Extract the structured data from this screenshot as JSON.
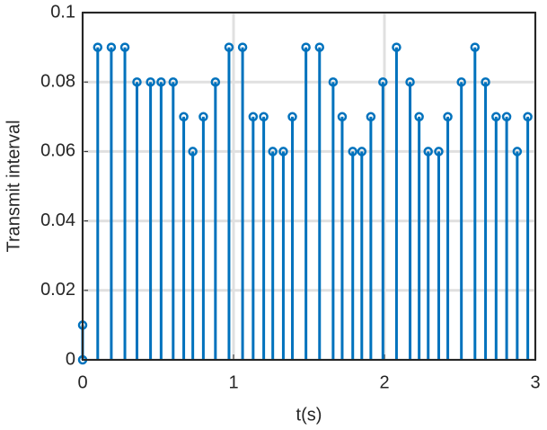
{
  "chart_data": {
    "type": "stem",
    "xlabel": "t(s)",
    "ylabel": "Transmit interval",
    "x": [
      0,
      0,
      0.1,
      0.19,
      0.28,
      0.36,
      0.45,
      0.52,
      0.6,
      0.67,
      0.73,
      0.8,
      0.88,
      0.97,
      1.06,
      1.13,
      1.2,
      1.26,
      1.33,
      1.39,
      1.48,
      1.57,
      1.66,
      1.72,
      1.79,
      1.85,
      1.91,
      1.99,
      2.08,
      2.17,
      2.23,
      2.29,
      2.36,
      2.42,
      2.51,
      2.6,
      2.67,
      2.74,
      2.81,
      2.88,
      2.95
    ],
    "values": [
      0,
      0.01,
      0.09,
      0.09,
      0.09,
      0.08,
      0.08,
      0.08,
      0.08,
      0.07,
      0.06,
      0.07,
      0.08,
      0.09,
      0.09,
      0.07,
      0.07,
      0.06,
      0.06,
      0.07,
      0.09,
      0.09,
      0.08,
      0.07,
      0.06,
      0.06,
      0.07,
      0.08,
      0.09,
      0.08,
      0.07,
      0.06,
      0.06,
      0.07,
      0.08,
      0.09,
      0.08,
      0.07,
      0.07,
      0.06,
      0.07
    ],
    "color": "#0072bd",
    "xlim": [
      0,
      3
    ],
    "xticks": [
      0,
      1,
      2,
      3
    ],
    "ylim": [
      0,
      0.1
    ],
    "yticks": [
      0,
      0.02,
      0.04,
      0.06,
      0.08,
      0.1
    ],
    "grid": true
  }
}
